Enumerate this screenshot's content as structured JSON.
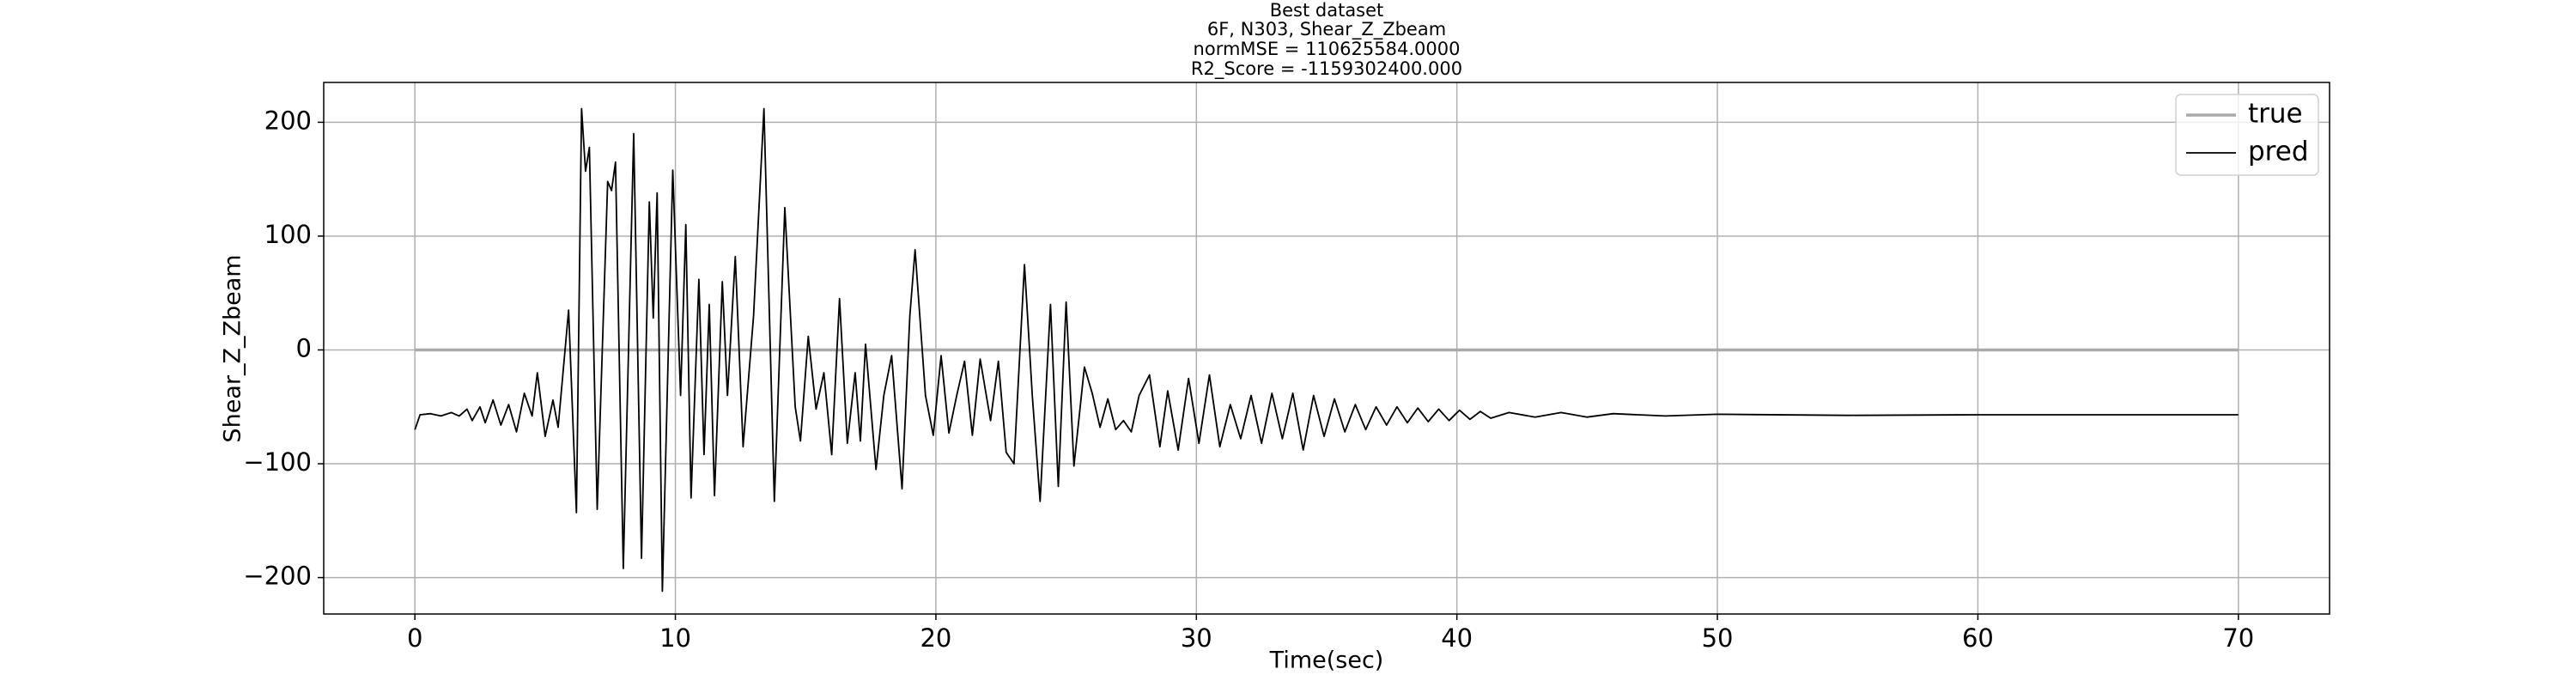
{
  "chart_data": {
    "type": "line",
    "title": [
      "Best dataset",
      "6F, N303, Shear_Z_Zbeam",
      "normMSE = 110625584.0000",
      "R2_Score = -1159302400.000"
    ],
    "x_label": "Time(sec)",
    "y_label": "Shear_Z_Zbeam",
    "xlim": [
      -3.5,
      73.5
    ],
    "ylim": [
      -232,
      235
    ],
    "xticks": [
      0,
      10,
      20,
      30,
      40,
      50,
      60,
      70
    ],
    "yticks": [
      {
        "value": -200,
        "label": "−200"
      },
      {
        "value": -100,
        "label": "−100"
      },
      0,
      100,
      200
    ],
    "grid": true,
    "legend": "upper right",
    "series": [
      {
        "name": "true",
        "color": "#aaaaaa",
        "x": [
          0,
          70
        ],
        "values": [
          0,
          0
        ]
      },
      {
        "name": "pred",
        "color": "#000000",
        "x": [
          0,
          0.2,
          0.6,
          1.0,
          1.4,
          1.7,
          2.0,
          2.2,
          2.5,
          2.7,
          3.0,
          3.3,
          3.6,
          3.9,
          4.2,
          4.5,
          4.7,
          5.0,
          5.3,
          5.5,
          5.9,
          6.2,
          6.4,
          6.55,
          6.7,
          7.0,
          7.4,
          7.55,
          7.7,
          8.0,
          8.4,
          8.7,
          9.0,
          9.15,
          9.3,
          9.5,
          9.9,
          10.2,
          10.4,
          10.6,
          10.9,
          11.1,
          11.3,
          11.5,
          11.8,
          12.0,
          12.3,
          12.6,
          13.0,
          13.4,
          13.8,
          14.2,
          14.6,
          14.8,
          15.1,
          15.4,
          15.7,
          16.0,
          16.3,
          16.6,
          16.9,
          17.1,
          17.3,
          17.7,
          18.0,
          18.3,
          18.7,
          19.0,
          19.2,
          19.6,
          19.9,
          20.2,
          20.5,
          20.8,
          21.1,
          21.4,
          21.7,
          22.1,
          22.4,
          22.7,
          23.0,
          23.4,
          23.7,
          24.0,
          24.4,
          24.7,
          25.0,
          25.3,
          25.7,
          26.0,
          26.3,
          26.6,
          26.9,
          27.2,
          27.5,
          27.8,
          28.2,
          28.6,
          28.9,
          29.3,
          29.7,
          30.1,
          30.5,
          30.9,
          31.3,
          31.7,
          32.1,
          32.5,
          32.9,
          33.3,
          33.7,
          34.1,
          34.5,
          34.9,
          35.3,
          35.7,
          36.1,
          36.5,
          36.9,
          37.3,
          37.7,
          38.1,
          38.5,
          38.9,
          39.3,
          39.7,
          40.1,
          40.5,
          40.9,
          41.3,
          42,
          43,
          44,
          45,
          46,
          48,
          50,
          55,
          60,
          70
        ],
        "values": [
          -70,
          -57,
          -56,
          -58,
          -55,
          -58,
          -52,
          -62,
          -50,
          -64,
          -44,
          -66,
          -48,
          -72,
          -38,
          -58,
          -20,
          -76,
          -44,
          -68,
          35,
          -143,
          212,
          157,
          178,
          -140,
          148,
          140,
          165,
          -192,
          190,
          -183,
          130,
          28,
          138,
          -212,
          158,
          -40,
          110,
          -130,
          62,
          -92,
          40,
          -128,
          60,
          -40,
          82,
          -85,
          30,
          212,
          -133,
          125,
          -50,
          -80,
          12,
          -52,
          -20,
          -92,
          45,
          -82,
          -20,
          -80,
          5,
          -105,
          -40,
          -5,
          -122,
          30,
          88,
          -40,
          -75,
          -5,
          -73,
          -40,
          -10,
          -75,
          -8,
          -62,
          -10,
          -90,
          -100,
          75,
          -40,
          -133,
          40,
          -120,
          42,
          -102,
          -15,
          -38,
          -68,
          -43,
          -70,
          -62,
          -72,
          -40,
          -22,
          -85,
          -36,
          -88,
          -25,
          -82,
          -22,
          -85,
          -48,
          -78,
          -40,
          -82,
          -38,
          -78,
          -38,
          -88,
          -40,
          -76,
          -43,
          -72,
          -48,
          -70,
          -50,
          -66,
          -50,
          -64,
          -51,
          -63,
          -52,
          -62,
          -53,
          -61,
          -54,
          -60,
          -55,
          -59,
          -55,
          -59,
          -56,
          -58,
          -56.5,
          -57.5,
          -57,
          -57
        ]
      }
    ]
  }
}
